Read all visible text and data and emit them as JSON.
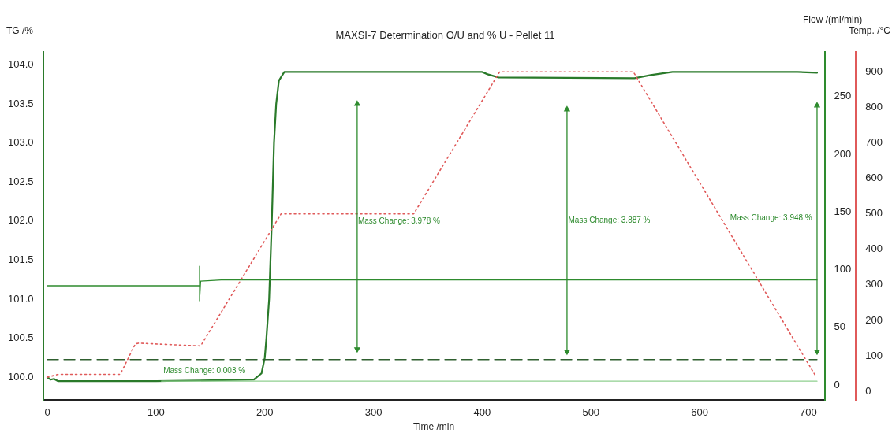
{
  "chart_data": {
    "type": "line",
    "title": "MAXSI-7 Determination O/U and % U - Pellet 11",
    "xlabel": "Time /min",
    "ylabel": "TG /%",
    "y2label": "Flow /(ml/min)",
    "y3label": "Temp. /°C",
    "xlim": [
      -4,
      715
    ],
    "xticks": [
      0,
      100,
      200,
      300,
      400,
      500,
      600,
      700
    ],
    "ylim": [
      99.71,
      104.17
    ],
    "yticks": [
      {
        "value": 100,
        "label": "100.0"
      },
      {
        "value": 100.5,
        "label": "100.5"
      },
      {
        "value": 101,
        "label": "101.0"
      },
      {
        "value": 101.5,
        "label": "101.5"
      },
      {
        "value": 102,
        "label": "102.0"
      },
      {
        "value": 102.5,
        "label": "102.5"
      },
      {
        "value": 103,
        "label": "103.0"
      },
      {
        "value": 103.5,
        "label": "103.5"
      },
      {
        "value": 104,
        "label": "104.0"
      }
    ],
    "y2lim": [
      -13,
      289
    ],
    "y2ticks": [
      0,
      50,
      100,
      150,
      200,
      250
    ],
    "y3lim": [
      -24,
      957
    ],
    "y3ticks": [
      0,
      100,
      200,
      300,
      400,
      500,
      600,
      700,
      800,
      900
    ],
    "grid": false,
    "legend": false,
    "marker": "none",
    "series": [
      {
        "color": "#2a7a2a",
        "x": [
          0,
          3,
          6,
          10,
          100,
          190,
          197,
          200,
          201.5,
          204,
          206.5,
          208.5,
          210.5,
          213,
          218,
          400,
          405,
          415,
          540,
          555,
          575,
          690,
          708
        ],
        "values": [
          100.0,
          99.97,
          99.98,
          99.95,
          99.95,
          99.97,
          100.05,
          100.25,
          100.5,
          101.0,
          102.0,
          103.0,
          103.5,
          103.8,
          103.91,
          103.91,
          103.88,
          103.84,
          103.83,
          103.87,
          103.91,
          103.91,
          103.9
        ]
      },
      {
        "color": "#8fcf8f",
        "x": [
          105,
          708
        ],
        "values": [
          99.95,
          99.95
        ]
      },
      {
        "color": "#2e8b2e",
        "axis": "y2",
        "x": [
          0,
          140,
          140,
          140,
          141,
          160,
          708
        ],
        "values": [
          86,
          86,
          103,
          73,
          90,
          91,
          91
        ]
      },
      {
        "color": "#2f5f2f",
        "axis": "y2",
        "line_style": "dashed",
        "x": [
          0,
          708
        ],
        "values": [
          22,
          22
        ]
      },
      {
        "color": "#e05a5a",
        "axis": "y3",
        "line_style": "dotted",
        "x": [
          0,
          10,
          67,
          81,
          84,
          141,
          215,
          337,
          416,
          539,
          706
        ],
        "values": [
          40,
          48,
          48,
          134,
          136,
          128,
          500,
          500,
          900,
          900,
          47
        ]
      },
      {
        "color": "#2e8b2e",
        "marker": "triangle",
        "x": [
          285,
          285
        ],
        "values": [
          103.5,
          100.36
        ]
      },
      {
        "color": "#2e8b2e",
        "marker": "triangle",
        "x": [
          478,
          478
        ],
        "values": [
          103.43,
          100.33
        ]
      },
      {
        "color": "#2e8b2e",
        "marker": "triangle",
        "x": [
          708,
          708
        ],
        "values": [
          103.48,
          100.33
        ]
      }
    ],
    "annotations": [
      "Mass Change: 0.003 %",
      "Mass Change: 3.978 %",
      "Mass Change: 3.887 %",
      "Mass Change: 3.948 %"
    ]
  }
}
